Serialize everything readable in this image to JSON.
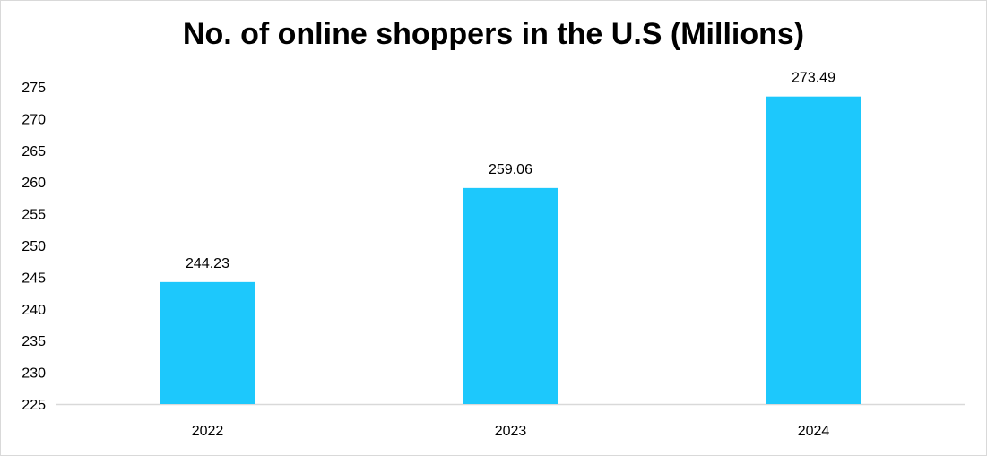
{
  "chart_data": {
    "type": "bar",
    "title": "No. of online shoppers in the U.S (Millions)",
    "categories": [
      "2022",
      "2023",
      "2024"
    ],
    "values": [
      244.23,
      259.06,
      273.49
    ],
    "data_labels": [
      "244.23",
      "259.06",
      "273.49"
    ],
    "xlabel": "",
    "ylabel": "",
    "ylim": [
      225,
      275
    ],
    "yticks": [
      225,
      230,
      235,
      240,
      245,
      250,
      255,
      260,
      265,
      270,
      275
    ],
    "grid": false,
    "legend": "none",
    "bar_color": "#1DC8FC",
    "axis_color": "#D9D9D9"
  }
}
